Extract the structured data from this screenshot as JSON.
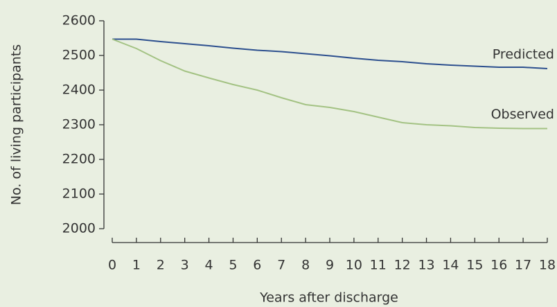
{
  "chart_data": {
    "type": "line",
    "x_label": "Years after discharge",
    "y_label": "No. of living participants",
    "x": [
      0,
      1,
      2,
      3,
      4,
      5,
      6,
      7,
      8,
      9,
      10,
      11,
      12,
      13,
      14,
      15,
      16,
      17,
      18
    ],
    "series": [
      {
        "name": "Predicted",
        "color": "#2c4f8e",
        "values": [
          2547,
          2547,
          2540,
          2534,
          2528,
          2521,
          2515,
          2511,
          2505,
          2499,
          2492,
          2486,
          2482,
          2476,
          2472,
          2469,
          2466,
          2466,
          2462
        ]
      },
      {
        "name": "Observed",
        "color": "#a3c283",
        "values": [
          2547,
          2520,
          2485,
          2455,
          2435,
          2416,
          2400,
          2378,
          2358,
          2350,
          2338,
          2322,
          2306,
          2300,
          2297,
          2292,
          2290,
          2289,
          2289
        ]
      }
    ],
    "xlim": [
      0,
      18
    ],
    "xticks": [
      0,
      1,
      2,
      3,
      4,
      5,
      6,
      7,
      8,
      9,
      10,
      11,
      12,
      13,
      14,
      15,
      16,
      17,
      18
    ],
    "ylim": [
      2000,
      2600
    ],
    "yticks": [
      2000,
      2100,
      2200,
      2300,
      2400,
      2500,
      2600
    ],
    "grid": false
  }
}
